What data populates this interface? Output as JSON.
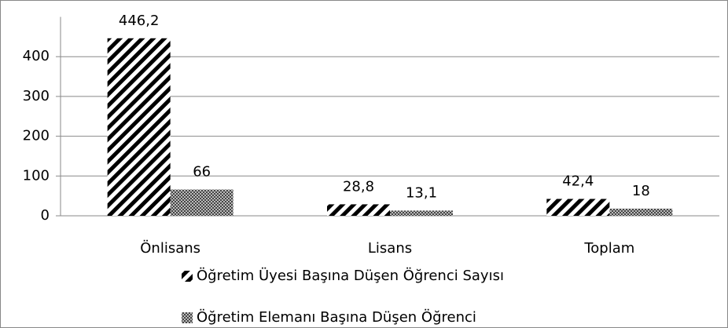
{
  "chart_data": {
    "type": "bar",
    "categories": [
      "Önlisans",
      "Lisans",
      "Toplam"
    ],
    "series": [
      {
        "name": "Öğretim Üyesi Başına Düşen Öğrenci Sayısı",
        "color": "#000000",
        "pattern": "diagonal",
        "values": [
          446.2,
          28.8,
          42.4
        ],
        "value_labels": [
          "446,2",
          "28,8",
          "42,4"
        ]
      },
      {
        "name": "Öğretim Elemanı Başına Düşen Öğrenci",
        "color": "#000000",
        "pattern": "crosshatch",
        "values": [
          66,
          13.1,
          18
        ],
        "value_labels": [
          "66",
          "13,1",
          "18"
        ]
      }
    ],
    "ylim": [
      0,
      500
    ],
    "yticks": [
      0,
      100,
      200,
      300,
      400
    ],
    "grid": true,
    "legend": "bottom"
  }
}
